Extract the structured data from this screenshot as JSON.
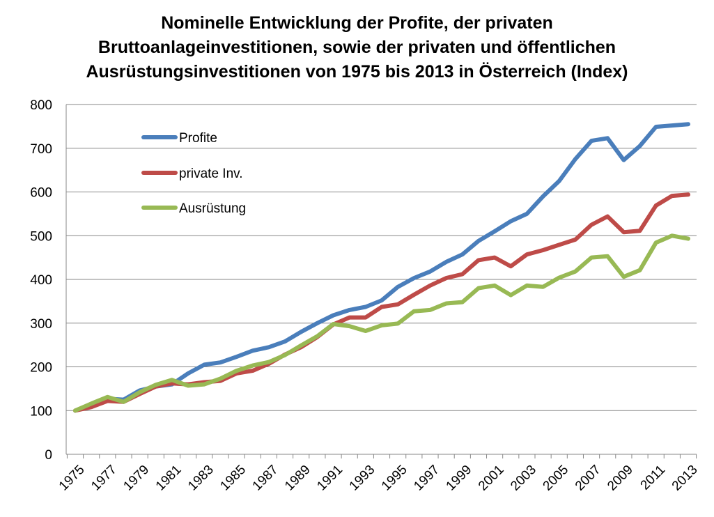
{
  "chart_data": {
    "type": "line",
    "title_lines": [
      "Nominelle Entwicklung der Profite, der privaten",
      "Bruttoanlageinvestitionen, sowie der privaten und öffentlichen",
      "Ausrüstungsinvestitionen von 1975 bis 2013 in Österreich (Index)"
    ],
    "xlabel": "",
    "ylabel": "",
    "ylim": [
      0,
      800
    ],
    "yticks": [
      0,
      100,
      200,
      300,
      400,
      500,
      600,
      700,
      800
    ],
    "xticks": [
      "1975",
      "1977",
      "1979",
      "1981",
      "1983",
      "1985",
      "1987",
      "1989",
      "1991",
      "1993",
      "1995",
      "1997",
      "1999",
      "2001",
      "2003",
      "2005",
      "2007",
      "2009",
      "2011",
      "2013"
    ],
    "grid": true,
    "legend_position": "top-left",
    "x": [
      1975,
      1976,
      1977,
      1978,
      1979,
      1980,
      1981,
      1982,
      1983,
      1984,
      1985,
      1986,
      1987,
      1988,
      1989,
      1990,
      1991,
      1992,
      1993,
      1994,
      1995,
      1996,
      1997,
      1998,
      1999,
      2000,
      2001,
      2002,
      2003,
      2004,
      2005,
      2006,
      2007,
      2008,
      2009,
      2010,
      2011,
      2012,
      2013
    ],
    "series": [
      {
        "name": "Profite",
        "color": "#4a7ebb",
        "values": [
          100,
          113,
          127,
          125,
          146,
          155,
          160,
          185,
          205,
          210,
          223,
          237,
          245,
          258,
          280,
          300,
          318,
          330,
          337,
          352,
          383,
          403,
          418,
          440,
          457,
          488,
          510,
          533,
          550,
          590,
          625,
          675,
          717,
          723,
          673,
          705,
          749,
          752,
          755
        ]
      },
      {
        "name": "private Inv.",
        "color": "#be4b48",
        "values": [
          100,
          108,
          122,
          120,
          138,
          155,
          162,
          160,
          165,
          168,
          185,
          191,
          207,
          228,
          245,
          268,
          297,
          313,
          313,
          337,
          343,
          365,
          386,
          403,
          412,
          444,
          450,
          430,
          457,
          467,
          479,
          491,
          525,
          544,
          508,
          511,
          569,
          591,
          594
        ]
      },
      {
        "name": "Ausrüstung",
        "color": "#98b954",
        "values": [
          100,
          116,
          131,
          120,
          142,
          159,
          170,
          157,
          160,
          173,
          191,
          203,
          211,
          227,
          249,
          270,
          298,
          293,
          282,
          295,
          299,
          327,
          330,
          345,
          348,
          380,
          386,
          364,
          386,
          383,
          404,
          418,
          450,
          453,
          406,
          421,
          484,
          500,
          493
        ]
      }
    ]
  }
}
